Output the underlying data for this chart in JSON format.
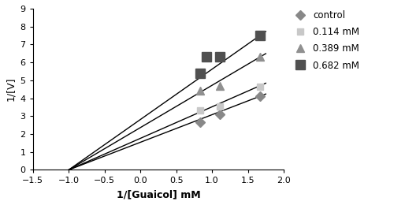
{
  "title": "",
  "xlabel": "1/[Guaicol] mM",
  "ylabel": "1/[V]",
  "xlim": [
    -1.5,
    2.0
  ],
  "ylim": [
    0,
    9
  ],
  "xticks": [
    -1.5,
    -1.0,
    -0.5,
    0.0,
    0.5,
    1.0,
    1.5,
    2.0
  ],
  "yticks": [
    0,
    1,
    2,
    3,
    4,
    5,
    6,
    7,
    8,
    9
  ],
  "convergence_x": -1.0,
  "convergence_y": 0.0,
  "series": [
    {
      "label": "control",
      "color": "#888888",
      "marker": "D",
      "markersize": 6,
      "data_x": [
        0.83,
        1.11,
        1.67
      ],
      "data_y": [
        2.65,
        3.1,
        4.1
      ],
      "line_slope": 1.54
    },
    {
      "label": "0.114 mM",
      "color": "#c8c8c8",
      "marker": "s",
      "markersize": 6,
      "data_x": [
        0.83,
        1.11,
        1.67
      ],
      "data_y": [
        3.3,
        3.55,
        4.65
      ],
      "line_slope": 1.76
    },
    {
      "label": "0.389 mM",
      "color": "#909090",
      "marker": "^",
      "markersize": 7,
      "data_x": [
        0.83,
        1.11,
        1.67
      ],
      "data_y": [
        4.4,
        4.7,
        6.3
      ],
      "line_slope": 2.36
    },
    {
      "label": "0.682 mM",
      "color": "#505050",
      "marker": "s",
      "markersize": 8,
      "data_x": [
        0.83,
        0.92,
        1.11,
        1.67
      ],
      "data_y": [
        5.4,
        6.3,
        6.3,
        7.5
      ],
      "line_slope": 2.81
    }
  ],
  "background_color": "#ffffff",
  "line_color": "#000000",
  "line_width": 1.0
}
